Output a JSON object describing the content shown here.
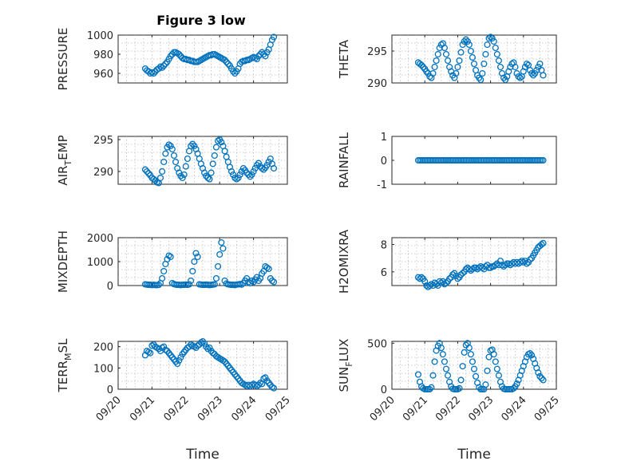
{
  "figure": {
    "title": "Figure 3 low",
    "marker_color": "#0072BD",
    "xlabel": "Time",
    "date_ticks": [
      "09/20",
      "09/21",
      "09/22",
      "09/23",
      "09/24",
      "09/25"
    ]
  },
  "chart_data": [
    {
      "type": "scatter",
      "ylabel": "PRESSURE",
      "ylim": [
        950,
        1000
      ],
      "yticks": [
        960,
        980,
        1000
      ],
      "grid": true,
      "x_range_days": [
        0,
        5
      ],
      "x_tick_labels_shown": false,
      "x": [
        0.8,
        0.85,
        0.9,
        0.95,
        1.0,
        1.05,
        1.1,
        1.15,
        1.2,
        1.25,
        1.3,
        1.35,
        1.4,
        1.45,
        1.5,
        1.55,
        1.6,
        1.65,
        1.7,
        1.75,
        1.8,
        1.85,
        1.9,
        1.95,
        2.0,
        2.05,
        2.1,
        2.15,
        2.2,
        2.25,
        2.3,
        2.35,
        2.4,
        2.45,
        2.5,
        2.55,
        2.6,
        2.65,
        2.7,
        2.75,
        2.8,
        2.85,
        2.9,
        2.95,
        3.0,
        3.05,
        3.1,
        3.15,
        3.2,
        3.25,
        3.3,
        3.35,
        3.4,
        3.45,
        3.5,
        3.55,
        3.6,
        3.65,
        3.7,
        3.75,
        3.8,
        3.85,
        3.9,
        3.95,
        4.0,
        4.05,
        4.1,
        4.15,
        4.2,
        4.25,
        4.3,
        4.35,
        4.4,
        4.45,
        4.5,
        4.55,
        4.6
      ],
      "y": [
        965,
        963,
        962,
        960,
        961,
        960,
        962,
        964,
        965,
        967,
        966,
        968,
        970,
        972,
        975,
        978,
        980,
        982,
        982,
        981,
        980,
        978,
        976,
        975,
        975,
        974,
        974,
        973,
        973,
        972,
        972,
        972,
        973,
        974,
        975,
        976,
        977,
        978,
        979,
        979,
        980,
        980,
        979,
        978,
        977,
        976,
        975,
        974,
        972,
        970,
        968,
        965,
        962,
        960,
        962,
        965,
        970,
        972,
        973,
        973,
        974,
        974,
        975,
        976,
        977,
        976,
        975,
        978,
        980,
        982,
        980,
        978,
        982,
        985,
        990,
        995,
        998
      ]
    },
    {
      "type": "scatter",
      "ylabel": "THETA",
      "ylim": [
        290,
        297.5
      ],
      "yticks": [
        290,
        295
      ],
      "grid": true,
      "x_range_days": [
        0,
        5
      ],
      "x_tick_labels_shown": false,
      "x": [
        0.8,
        0.85,
        0.9,
        0.95,
        1.0,
        1.05,
        1.1,
        1.15,
        1.2,
        1.25,
        1.3,
        1.35,
        1.4,
        1.45,
        1.5,
        1.55,
        1.6,
        1.65,
        1.7,
        1.75,
        1.8,
        1.85,
        1.9,
        1.95,
        2.0,
        2.05,
        2.1,
        2.15,
        2.2,
        2.25,
        2.3,
        2.35,
        2.4,
        2.45,
        2.5,
        2.55,
        2.6,
        2.65,
        2.7,
        2.75,
        2.8,
        2.85,
        2.9,
        2.95,
        3.0,
        3.05,
        3.1,
        3.15,
        3.2,
        3.25,
        3.3,
        3.35,
        3.4,
        3.45,
        3.5,
        3.55,
        3.6,
        3.65,
        3.7,
        3.75,
        3.8,
        3.85,
        3.9,
        3.95,
        4.0,
        4.05,
        4.1,
        4.15,
        4.2,
        4.25,
        4.3,
        4.35,
        4.4,
        4.45,
        4.5,
        4.55,
        4.6
      ],
      "y": [
        293.2,
        293.0,
        292.8,
        292.5,
        292.2,
        291.8,
        291.5,
        291.0,
        290.8,
        291.5,
        292.5,
        293.5,
        294.5,
        295.5,
        296.0,
        296.2,
        295.5,
        294.5,
        293.5,
        292.5,
        291.8,
        291.2,
        290.8,
        291.5,
        292.5,
        293.5,
        294.8,
        296.0,
        296.5,
        296.8,
        296.5,
        296.0,
        295.0,
        294.0,
        293.0,
        292.0,
        291.2,
        290.8,
        290.5,
        291.5,
        293.0,
        294.5,
        296.0,
        297.0,
        297.2,
        297.0,
        296.5,
        295.5,
        294.5,
        293.5,
        292.5,
        291.5,
        290.8,
        290.5,
        291.0,
        291.8,
        292.5,
        293.0,
        293.2,
        292.5,
        291.5,
        291.0,
        290.8,
        291.0,
        291.8,
        292.5,
        293.0,
        292.8,
        292.0,
        291.5,
        291.2,
        291.5,
        292.0,
        292.5,
        293.0,
        292.0,
        291.2
      ]
    },
    {
      "type": "scatter",
      "ylabel_main": "AIR",
      "ylabel_sub": "T",
      "ylabel_rest": "EMP",
      "ylim": [
        288,
        295.5
      ],
      "yticks": [
        290,
        295
      ],
      "grid": true,
      "x_range_days": [
        0,
        5
      ],
      "x_tick_labels_shown": false,
      "x": [
        0.8,
        0.85,
        0.9,
        0.95,
        1.0,
        1.05,
        1.1,
        1.15,
        1.2,
        1.25,
        1.3,
        1.35,
        1.4,
        1.45,
        1.5,
        1.55,
        1.6,
        1.65,
        1.7,
        1.75,
        1.8,
        1.85,
        1.9,
        1.95,
        2.0,
        2.05,
        2.1,
        2.15,
        2.2,
        2.25,
        2.3,
        2.35,
        2.4,
        2.45,
        2.5,
        2.55,
        2.6,
        2.65,
        2.7,
        2.75,
        2.8,
        2.85,
        2.9,
        2.95,
        3.0,
        3.05,
        3.1,
        3.15,
        3.2,
        3.25,
        3.3,
        3.35,
        3.4,
        3.45,
        3.5,
        3.55,
        3.6,
        3.65,
        3.7,
        3.75,
        3.8,
        3.85,
        3.9,
        3.95,
        4.0,
        4.05,
        4.1,
        4.15,
        4.2,
        4.25,
        4.3,
        4.35,
        4.4,
        4.45,
        4.5,
        4.55,
        4.6
      ],
      "y": [
        290.3,
        290.0,
        289.7,
        289.4,
        289.0,
        288.8,
        288.6,
        288.3,
        288.2,
        289.0,
        290.0,
        291.5,
        292.8,
        293.8,
        294.2,
        294.0,
        293.5,
        292.5,
        291.5,
        290.5,
        289.8,
        289.3,
        289.0,
        289.5,
        290.8,
        292.0,
        293.2,
        294.0,
        294.3,
        294.0,
        293.5,
        292.8,
        292.0,
        291.2,
        290.5,
        289.8,
        289.3,
        289.0,
        288.8,
        289.8,
        291.2,
        292.5,
        293.8,
        294.8,
        295.0,
        294.6,
        294.0,
        293.2,
        292.3,
        291.5,
        290.7,
        290.0,
        289.5,
        289.0,
        288.8,
        289.0,
        289.5,
        290.0,
        290.5,
        290.2,
        289.8,
        289.5,
        289.2,
        289.5,
        290.0,
        290.5,
        291.0,
        291.3,
        290.8,
        290.5,
        290.3,
        290.6,
        291.0,
        291.5,
        292.0,
        291.2,
        290.5
      ]
    },
    {
      "type": "scatter",
      "ylabel": "RAINFALL",
      "ylim": [
        -1,
        1
      ],
      "yticks": [
        -1,
        0,
        1
      ],
      "grid": false,
      "x_range_days": [
        0,
        5
      ],
      "x_tick_labels_shown": false,
      "x": [
        0.8,
        0.85,
        0.9,
        0.95,
        1.0,
        1.05,
        1.1,
        1.15,
        1.2,
        1.25,
        1.3,
        1.35,
        1.4,
        1.45,
        1.5,
        1.55,
        1.6,
        1.65,
        1.7,
        1.75,
        1.8,
        1.85,
        1.9,
        1.95,
        2.0,
        2.05,
        2.1,
        2.15,
        2.2,
        2.25,
        2.3,
        2.35,
        2.4,
        2.45,
        2.5,
        2.55,
        2.6,
        2.65,
        2.7,
        2.75,
        2.8,
        2.85,
        2.9,
        2.95,
        3.0,
        3.05,
        3.1,
        3.15,
        3.2,
        3.25,
        3.3,
        3.35,
        3.4,
        3.45,
        3.5,
        3.55,
        3.6,
        3.65,
        3.7,
        3.75,
        3.8,
        3.85,
        3.9,
        3.95,
        4.0,
        4.05,
        4.1,
        4.15,
        4.2,
        4.25,
        4.3,
        4.35,
        4.4,
        4.45,
        4.5,
        4.55,
        4.6
      ],
      "y": [
        0,
        0,
        0,
        0,
        0,
        0,
        0,
        0,
        0,
        0,
        0,
        0,
        0,
        0,
        0,
        0,
        0,
        0,
        0,
        0,
        0,
        0,
        0,
        0,
        0,
        0,
        0,
        0,
        0,
        0,
        0,
        0,
        0,
        0,
        0,
        0,
        0,
        0,
        0,
        0,
        0,
        0,
        0,
        0,
        0,
        0,
        0,
        0,
        0,
        0,
        0,
        0,
        0,
        0,
        0,
        0,
        0,
        0,
        0,
        0,
        0,
        0,
        0,
        0,
        0,
        0,
        0,
        0,
        0,
        0,
        0,
        0,
        0,
        0,
        0,
        0,
        0
      ]
    },
    {
      "type": "scatter",
      "ylabel": "MIXDEPTH",
      "ylim": [
        0,
        2000
      ],
      "yticks": [
        0,
        1000,
        2000
      ],
      "grid": true,
      "x_range_days": [
        0,
        5
      ],
      "x_tick_labels_shown": false,
      "x": [
        0.8,
        0.85,
        0.9,
        0.95,
        1.0,
        1.05,
        1.1,
        1.15,
        1.2,
        1.25,
        1.3,
        1.35,
        1.4,
        1.45,
        1.5,
        1.55,
        1.6,
        1.65,
        1.7,
        1.75,
        1.8,
        1.85,
        1.9,
        1.95,
        2.0,
        2.05,
        2.1,
        2.15,
        2.2,
        2.25,
        2.3,
        2.35,
        2.4,
        2.45,
        2.5,
        2.55,
        2.6,
        2.65,
        2.7,
        2.75,
        2.8,
        2.85,
        2.9,
        2.95,
        3.0,
        3.05,
        3.1,
        3.15,
        3.2,
        3.25,
        3.3,
        3.35,
        3.4,
        3.45,
        3.5,
        3.55,
        3.6,
        3.65,
        3.7,
        3.75,
        3.8,
        3.85,
        3.9,
        3.95,
        4.0,
        4.05,
        4.1,
        4.15,
        4.2,
        4.25,
        4.3,
        4.35,
        4.4,
        4.45,
        4.5,
        4.55,
        4.6
      ],
      "y": [
        50,
        40,
        30,
        30,
        20,
        30,
        20,
        20,
        30,
        100,
        300,
        600,
        900,
        1100,
        1250,
        1200,
        100,
        60,
        40,
        30,
        30,
        20,
        30,
        30,
        40,
        30,
        50,
        200,
        600,
        1000,
        1350,
        1200,
        50,
        40,
        30,
        30,
        40,
        30,
        20,
        30,
        40,
        50,
        300,
        800,
        1300,
        1800,
        1550,
        200,
        80,
        50,
        40,
        30,
        30,
        20,
        40,
        50,
        60,
        40,
        100,
        200,
        300,
        150,
        100,
        200,
        150,
        250,
        350,
        200,
        300,
        500,
        600,
        800,
        750,
        700,
        300,
        200,
        150
      ]
    },
    {
      "type": "scatter",
      "ylabel": "H2OMIXRA",
      "ylim": [
        5,
        8.5
      ],
      "yticks": [
        6,
        8
      ],
      "grid": true,
      "x_range_days": [
        0,
        5
      ],
      "x_tick_labels_shown": false,
      "x": [
        0.8,
        0.85,
        0.9,
        0.95,
        1.0,
        1.05,
        1.1,
        1.15,
        1.2,
        1.25,
        1.3,
        1.35,
        1.4,
        1.45,
        1.5,
        1.55,
        1.6,
        1.65,
        1.7,
        1.75,
        1.8,
        1.85,
        1.9,
        1.95,
        2.0,
        2.05,
        2.1,
        2.15,
        2.2,
        2.25,
        2.3,
        2.35,
        2.4,
        2.45,
        2.5,
        2.55,
        2.6,
        2.65,
        2.7,
        2.75,
        2.8,
        2.85,
        2.9,
        2.95,
        3.0,
        3.05,
        3.1,
        3.15,
        3.2,
        3.25,
        3.3,
        3.35,
        3.4,
        3.45,
        3.5,
        3.55,
        3.6,
        3.65,
        3.7,
        3.75,
        3.8,
        3.85,
        3.9,
        3.95,
        4.0,
        4.05,
        4.1,
        4.15,
        4.2,
        4.25,
        4.3,
        4.35,
        4.4,
        4.45,
        4.5,
        4.55,
        4.6
      ],
      "y": [
        5.6,
        5.5,
        5.6,
        5.5,
        5.3,
        5.0,
        4.9,
        5.0,
        5.1,
        5.0,
        5.2,
        5.1,
        5.0,
        5.3,
        5.2,
        5.3,
        5.1,
        5.2,
        5.3,
        5.5,
        5.6,
        5.8,
        5.9,
        5.7,
        5.5,
        5.6,
        5.8,
        5.9,
        6.0,
        6.2,
        6.3,
        6.2,
        6.1,
        6.2,
        6.3,
        6.3,
        6.2,
        6.3,
        6.4,
        6.3,
        6.2,
        6.4,
        6.5,
        6.3,
        6.3,
        6.4,
        6.4,
        6.5,
        6.6,
        6.5,
        6.8,
        6.5,
        6.4,
        6.5,
        6.6,
        6.6,
        6.5,
        6.6,
        6.7,
        6.6,
        6.7,
        6.6,
        6.7,
        6.8,
        6.7,
        6.8,
        6.6,
        6.7,
        6.9,
        7.0,
        7.2,
        7.4,
        7.6,
        7.8,
        7.9,
        8.0,
        8.1
      ]
    },
    {
      "type": "scatter",
      "ylabel_main": "TERR",
      "ylabel_sub": "M",
      "ylabel_rest": "SL",
      "ylim": [
        0,
        225
      ],
      "yticks": [
        0,
        100,
        200
      ],
      "grid": true,
      "x_range_days": [
        0,
        5
      ],
      "x_tick_labels_shown": true,
      "x": [
        0.8,
        0.85,
        0.9,
        0.95,
        1.0,
        1.05,
        1.1,
        1.15,
        1.2,
        1.25,
        1.3,
        1.35,
        1.4,
        1.45,
        1.5,
        1.55,
        1.6,
        1.65,
        1.7,
        1.75,
        1.8,
        1.85,
        1.9,
        1.95,
        2.0,
        2.05,
        2.1,
        2.15,
        2.2,
        2.25,
        2.3,
        2.35,
        2.4,
        2.45,
        2.5,
        2.55,
        2.6,
        2.65,
        2.7,
        2.75,
        2.8,
        2.85,
        2.9,
        2.95,
        3.0,
        3.05,
        3.1,
        3.15,
        3.2,
        3.25,
        3.3,
        3.35,
        3.4,
        3.45,
        3.5,
        3.55,
        3.6,
        3.65,
        3.7,
        3.75,
        3.8,
        3.85,
        3.9,
        3.95,
        4.0,
        4.05,
        4.1,
        4.15,
        4.2,
        4.25,
        4.3,
        4.35,
        4.4,
        4.45,
        4.5,
        4.55,
        4.6
      ],
      "y": [
        160,
        180,
        175,
        170,
        205,
        210,
        200,
        195,
        190,
        180,
        195,
        200,
        185,
        180,
        170,
        160,
        150,
        140,
        130,
        120,
        135,
        150,
        165,
        175,
        185,
        195,
        200,
        210,
        205,
        200,
        195,
        205,
        210,
        220,
        225,
        215,
        200,
        190,
        195,
        180,
        170,
        165,
        155,
        150,
        145,
        140,
        135,
        130,
        120,
        110,
        100,
        90,
        80,
        70,
        60,
        50,
        40,
        30,
        25,
        20,
        15,
        20,
        15,
        20,
        25,
        20,
        15,
        20,
        30,
        25,
        50,
        55,
        40,
        30,
        20,
        10,
        5
      ]
    },
    {
      "type": "scatter",
      "ylabel_main": "SUN",
      "ylabel_sub": "F",
      "ylabel_rest": "LUX",
      "ylim": [
        0,
        520
      ],
      "yticks": [
        0,
        500
      ],
      "grid": true,
      "x_range_days": [
        0,
        5
      ],
      "x_tick_labels_shown": true,
      "x": [
        0.8,
        0.85,
        0.9,
        0.95,
        1.0,
        1.05,
        1.1,
        1.15,
        1.2,
        1.25,
        1.3,
        1.35,
        1.4,
        1.45,
        1.5,
        1.55,
        1.6,
        1.65,
        1.7,
        1.75,
        1.8,
        1.85,
        1.9,
        1.95,
        2.0,
        2.05,
        2.1,
        2.15,
        2.2,
        2.25,
        2.3,
        2.35,
        2.4,
        2.45,
        2.5,
        2.55,
        2.6,
        2.65,
        2.7,
        2.75,
        2.8,
        2.85,
        2.9,
        2.95,
        3.0,
        3.05,
        3.1,
        3.15,
        3.2,
        3.25,
        3.3,
        3.35,
        3.4,
        3.45,
        3.5,
        3.55,
        3.6,
        3.65,
        3.7,
        3.75,
        3.8,
        3.85,
        3.9,
        3.95,
        4.0,
        4.05,
        4.1,
        4.15,
        4.2,
        4.25,
        4.3,
        4.35,
        4.4,
        4.45,
        4.5,
        4.55,
        4.6
      ],
      "y": [
        160,
        80,
        30,
        10,
        0,
        0,
        0,
        0,
        20,
        150,
        300,
        420,
        470,
        500,
        450,
        380,
        300,
        220,
        150,
        80,
        30,
        5,
        0,
        0,
        0,
        10,
        100,
        250,
        400,
        480,
        500,
        450,
        380,
        300,
        220,
        140,
        70,
        20,
        0,
        0,
        0,
        50,
        200,
        350,
        420,
        430,
        380,
        300,
        220,
        150,
        80,
        30,
        5,
        0,
        0,
        0,
        0,
        0,
        10,
        30,
        60,
        100,
        150,
        200,
        250,
        300,
        350,
        380,
        390,
        370,
        330,
        280,
        230,
        180,
        140,
        120,
        100
      ]
    }
  ]
}
